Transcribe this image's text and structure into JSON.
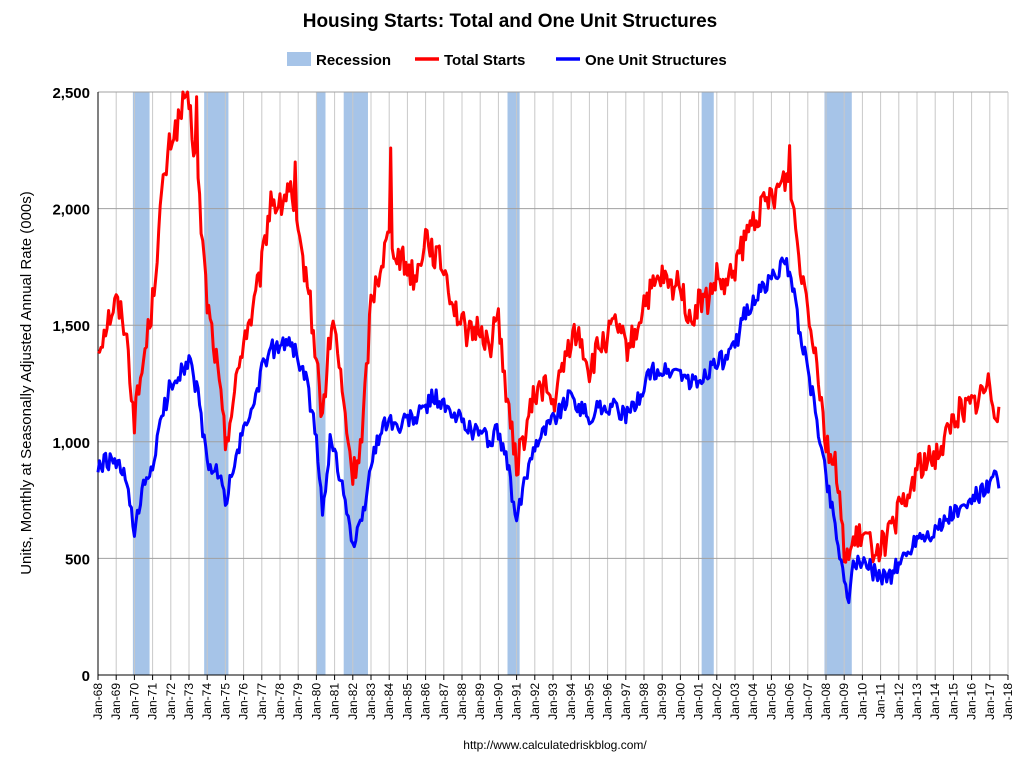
{
  "chart_data": {
    "type": "line",
    "title": "Housing Starts: Total and One Unit Structures",
    "ylabel": "Units, Monthly at Seasonally Adjusted Annual Rate (000s)",
    "xlabel": "",
    "source": "http://www.calculatedriskblog.com/",
    "ylim": [
      0,
      2500
    ],
    "xlim": [
      "1968-01",
      "2018-01"
    ],
    "y_ticks": [
      "0",
      "500",
      "1,000",
      "1,500",
      "2,000",
      "2,500"
    ],
    "x_ticks": [
      "Jan-68",
      "Jan-69",
      "Jan-70",
      "Jan-71",
      "Jan-72",
      "Jan-73",
      "Jan-74",
      "Jan-75",
      "Jan-76",
      "Jan-77",
      "Jan-78",
      "Jan-79",
      "Jan-80",
      "Jan-81",
      "Jan-82",
      "Jan-83",
      "Jan-84",
      "Jan-85",
      "Jan-86",
      "Jan-87",
      "Jan-88",
      "Jan-89",
      "Jan-90",
      "Jan-91",
      "Jan-92",
      "Jan-93",
      "Jan-94",
      "Jan-95",
      "Jan-96",
      "Jan-97",
      "Jan-98",
      "Jan-99",
      "Jan-00",
      "Jan-01",
      "Jan-02",
      "Jan-03",
      "Jan-04",
      "Jan-05",
      "Jan-06",
      "Jan-07",
      "Jan-08",
      "Jan-09",
      "Jan-10",
      "Jan-11",
      "Jan-12",
      "Jan-13",
      "Jan-14",
      "Jan-15",
      "Jan-16",
      "Jan-17",
      "Jan-18"
    ],
    "grid": true,
    "legend": "top-center",
    "legend_items": [
      {
        "label": "Recession",
        "color": "#a6c4e8",
        "kind": "patch"
      },
      {
        "label": "Total Starts",
        "color": "#ff0000",
        "kind": "line"
      },
      {
        "label": "One Unit Structures",
        "color": "#0000ff",
        "kind": "line"
      }
    ],
    "recessions": [
      {
        "start": "1969-12",
        "end": "1970-11"
      },
      {
        "start": "1973-11",
        "end": "1975-03"
      },
      {
        "start": "1980-01",
        "end": "1980-07"
      },
      {
        "start": "1981-07",
        "end": "1982-11"
      },
      {
        "start": "1990-07",
        "end": "1991-03"
      },
      {
        "start": "2001-03",
        "end": "2001-11"
      },
      {
        "start": "2007-12",
        "end": "2009-06"
      }
    ],
    "series": [
      {
        "name": "Total Starts",
        "color": "#ff0000",
        "x": [
          "1968-01",
          "1968-07",
          "1969-01",
          "1969-07",
          "1970-01",
          "1970-07",
          "1971-01",
          "1971-07",
          "1972-01",
          "1972-07",
          "1973-01",
          "1973-07",
          "1974-01",
          "1974-07",
          "1975-01",
          "1975-07",
          "1976-01",
          "1976-07",
          "1977-01",
          "1977-07",
          "1978-01",
          "1978-07",
          "1979-01",
          "1979-07",
          "1980-01",
          "1980-05",
          "1980-10",
          "1981-01",
          "1981-07",
          "1982-01",
          "1982-07",
          "1983-01",
          "1983-07",
          "1984-01",
          "1984-07",
          "1985-01",
          "1985-07",
          "1986-01",
          "1986-07",
          "1987-01",
          "1987-07",
          "1988-01",
          "1988-07",
          "1989-01",
          "1989-07",
          "1990-01",
          "1990-07",
          "1991-01",
          "1991-07",
          "1992-01",
          "1992-07",
          "1993-01",
          "1993-07",
          "1994-01",
          "1994-07",
          "1995-01",
          "1995-07",
          "1996-01",
          "1996-07",
          "1997-01",
          "1997-07",
          "1998-01",
          "1998-07",
          "1999-01",
          "1999-07",
          "2000-01",
          "2000-07",
          "2001-01",
          "2001-07",
          "2002-01",
          "2002-07",
          "2003-01",
          "2003-07",
          "2004-01",
          "2004-07",
          "2005-01",
          "2005-07",
          "2006-01",
          "2006-07",
          "2007-01",
          "2007-07",
          "2008-01",
          "2008-07",
          "2009-01",
          "2009-04",
          "2009-07",
          "2010-01",
          "2010-07",
          "2011-01",
          "2011-07",
          "2012-01",
          "2012-07",
          "2013-01",
          "2013-07",
          "2014-01",
          "2014-07",
          "2015-01",
          "2015-07",
          "2016-01",
          "2016-07",
          "2017-01",
          "2017-04",
          "2017-07"
        ],
        "values": [
          1400,
          1520,
          1600,
          1500,
          1100,
          1350,
          1600,
          2050,
          2300,
          2380,
          2450,
          2100,
          1600,
          1350,
          1000,
          1200,
          1450,
          1550,
          1750,
          2050,
          2000,
          2100,
          1850,
          1700,
          1350,
          1100,
          1450,
          1500,
          1150,
          850,
          1000,
          1600,
          1750,
          1900,
          1800,
          1750,
          1700,
          1900,
          1800,
          1750,
          1600,
          1500,
          1450,
          1500,
          1400,
          1550,
          1150,
          900,
          1050,
          1200,
          1250,
          1150,
          1300,
          1450,
          1450,
          1300,
          1400,
          1450,
          1500,
          1400,
          1450,
          1600,
          1650,
          1700,
          1650,
          1700,
          1500,
          1600,
          1600,
          1700,
          1650,
          1750,
          1850,
          1950,
          2000,
          2050,
          2100,
          2150,
          1800,
          1600,
          1350,
          1000,
          900,
          550,
          500,
          560,
          600,
          550,
          550,
          600,
          700,
          750,
          900,
          900,
          950,
          1000,
          1100,
          1150,
          1150,
          1200,
          1250,
          1150,
          1150
        ],
        "peaks": {
          "1972-09": 2500,
          "1973-06": 2480,
          "1978-11": 2200,
          "1984-02": 2260,
          "2006-01": 2270
        }
      },
      {
        "name": "One Unit Structures",
        "color": "#0000ff",
        "x": [
          "1968-01",
          "1968-07",
          "1969-01",
          "1969-07",
          "1970-01",
          "1970-07",
          "1971-01",
          "1971-07",
          "1972-01",
          "1972-07",
          "1973-01",
          "1973-07",
          "1974-01",
          "1974-07",
          "1975-01",
          "1975-07",
          "1976-01",
          "1976-07",
          "1977-01",
          "1977-07",
          "1978-01",
          "1978-07",
          "1979-01",
          "1979-07",
          "1980-01",
          "1980-05",
          "1980-10",
          "1981-01",
          "1981-07",
          "1982-01",
          "1982-07",
          "1983-01",
          "1983-07",
          "1984-01",
          "1984-07",
          "1985-01",
          "1985-07",
          "1986-01",
          "1986-07",
          "1987-01",
          "1987-07",
          "1988-01",
          "1988-07",
          "1989-01",
          "1989-07",
          "1990-01",
          "1990-07",
          "1991-01",
          "1991-07",
          "1992-01",
          "1992-07",
          "1993-01",
          "1993-07",
          "1994-01",
          "1994-07",
          "1995-01",
          "1995-07",
          "1996-01",
          "1996-07",
          "1997-01",
          "1997-07",
          "1998-01",
          "1998-07",
          "1999-01",
          "1999-07",
          "2000-01",
          "2000-07",
          "2001-01",
          "2001-07",
          "2002-01",
          "2002-07",
          "2003-01",
          "2003-07",
          "2004-01",
          "2004-07",
          "2005-01",
          "2005-07",
          "2006-01",
          "2006-07",
          "2007-01",
          "2007-07",
          "2008-01",
          "2008-07",
          "2009-01",
          "2009-04",
          "2009-07",
          "2010-01",
          "2010-07",
          "2011-01",
          "2011-07",
          "2012-01",
          "2012-07",
          "2013-01",
          "2013-07",
          "2014-01",
          "2014-07",
          "2015-01",
          "2015-07",
          "2016-01",
          "2016-07",
          "2017-01",
          "2017-04",
          "2017-07"
        ],
        "values": [
          880,
          920,
          900,
          850,
          600,
          800,
          900,
          1100,
          1250,
          1300,
          1350,
          1200,
          900,
          880,
          750,
          900,
          1050,
          1150,
          1300,
          1400,
          1400,
          1450,
          1350,
          1250,
          1000,
          700,
          1000,
          950,
          800,
          550,
          650,
          900,
          1050,
          1100,
          1050,
          1100,
          1100,
          1150,
          1200,
          1150,
          1100,
          1100,
          1050,
          1050,
          1000,
          1050,
          900,
          650,
          850,
          1000,
          1050,
          1100,
          1150,
          1200,
          1150,
          1100,
          1150,
          1150,
          1150,
          1100,
          1150,
          1250,
          1300,
          1300,
          1300,
          1300,
          1250,
          1250,
          1300,
          1350,
          1350,
          1400,
          1550,
          1600,
          1650,
          1700,
          1750,
          1750,
          1500,
          1300,
          1100,
          850,
          650,
          400,
          350,
          450,
          500,
          450,
          430,
          420,
          480,
          520,
          600,
          600,
          620,
          650,
          700,
          700,
          750,
          780,
          800,
          850,
          800
        ]
      }
    ]
  }
}
